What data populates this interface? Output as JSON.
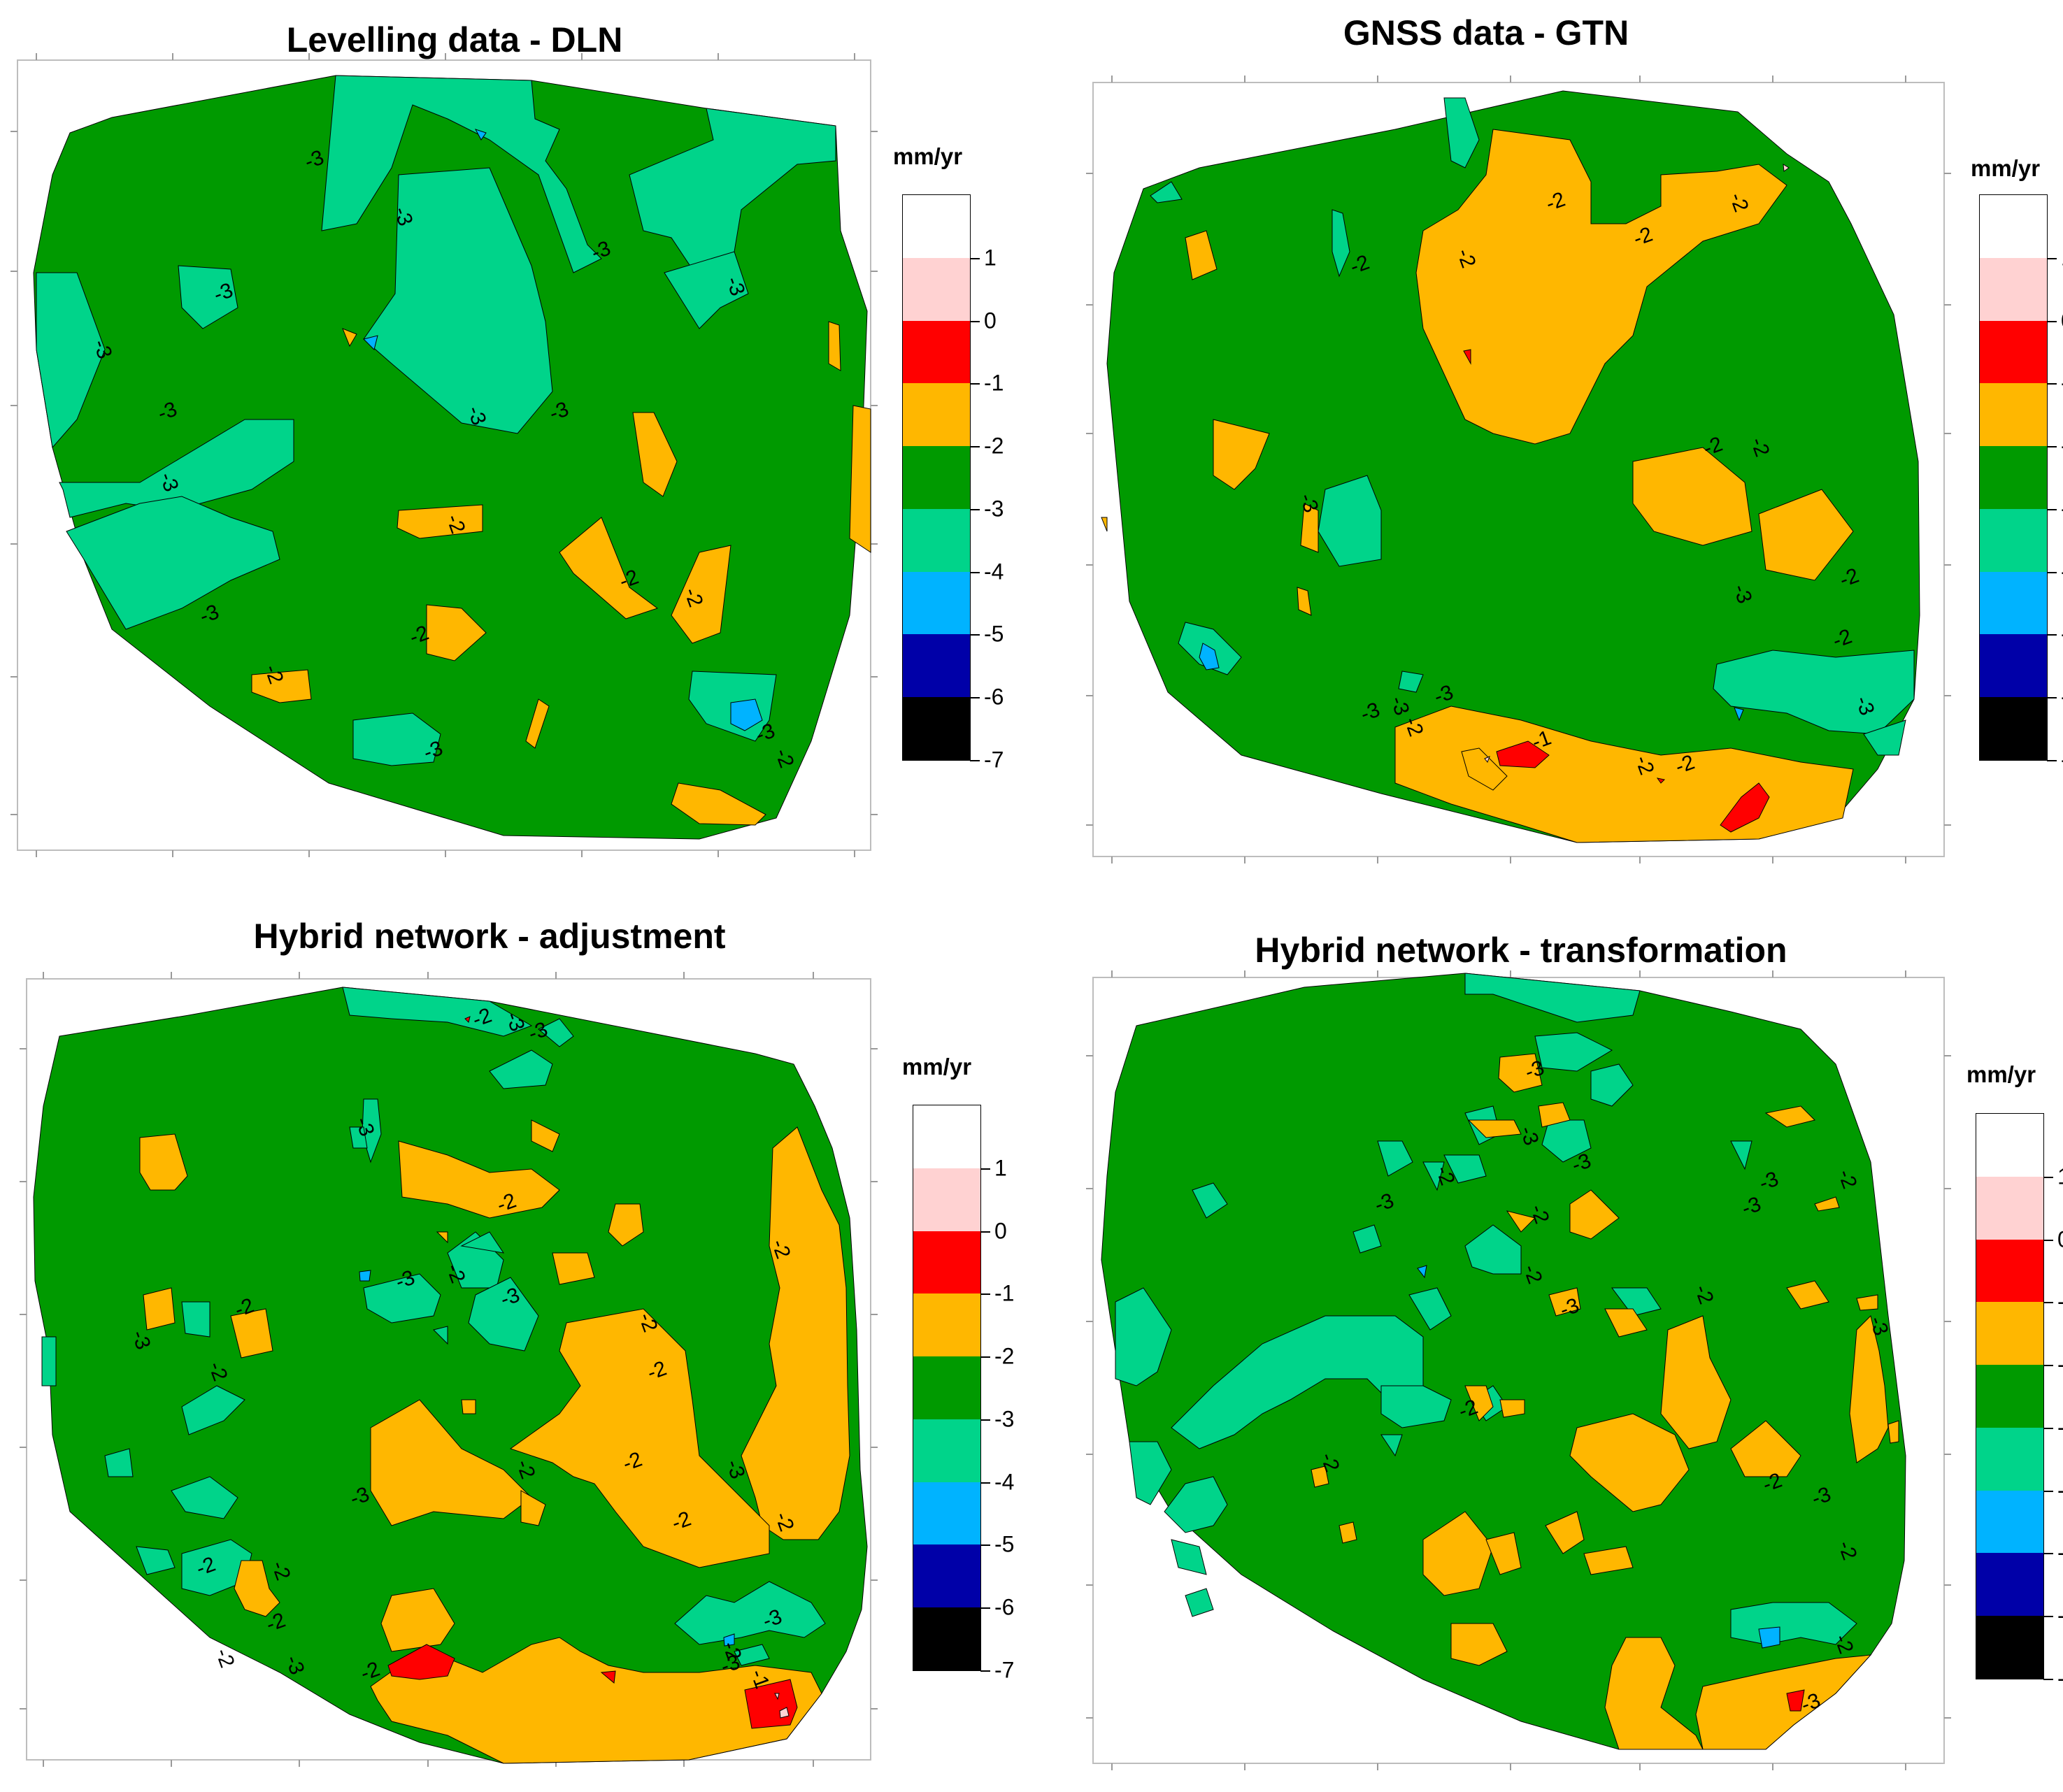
{
  "chart_data": [
    {
      "type": "heatmap",
      "title": "Levelling data - DLN",
      "colorbar_label": "mm/yr",
      "contour_labels": [
        "-3",
        "-3",
        "-3",
        "-3",
        "-3",
        "-3",
        "-3",
        "-3",
        "-3",
        "-3",
        "-3",
        "-2",
        "-2",
        "-2",
        "-2",
        "-2",
        "-3",
        "-2",
        "-3"
      ]
    },
    {
      "type": "heatmap",
      "title": "GNSS data - GTN",
      "colorbar_label": "mm/yr",
      "contour_labels": [
        "-2",
        "-2",
        "-2",
        "-2",
        "-2",
        "-3",
        "-2",
        "-2",
        "-2",
        "-3",
        "-2",
        "-3",
        "-3",
        "-3",
        "-3",
        "-2",
        "-1",
        "-2",
        "-2"
      ]
    },
    {
      "type": "heatmap",
      "title": "Hybrid network - adjustment",
      "colorbar_label": "mm/yr",
      "contour_labels": [
        "-2",
        "-3",
        "-3",
        "-3",
        "-2",
        "-2",
        "-3",
        "-2",
        "-3",
        "-2",
        "-2",
        "-3",
        "-2",
        "-2",
        "-2",
        "-2",
        "-2",
        "-3",
        "-2",
        "-2",
        "-3",
        "-2",
        "-2",
        "-2",
        "-3",
        "-2",
        "-3",
        "-3",
        "-2",
        "-1"
      ]
    },
    {
      "type": "heatmap",
      "title": "Hybrid network - transformation",
      "colorbar_label": "mm/yr",
      "contour_labels": [
        "-3",
        "-3",
        "-3",
        "-2",
        "-3",
        "-2",
        "-3",
        "-2",
        "-3",
        "-2",
        "-3",
        "-2",
        "-2",
        "-3",
        "-3",
        "-2",
        "-2",
        "-2",
        "-3",
        "-2"
      ]
    }
  ],
  "colorbar": {
    "tick_labels": [
      "1",
      "0",
      "-1",
      "-2",
      "-3",
      "-4",
      "-5",
      "-6",
      "-7"
    ],
    "colors": [
      "#ffffff",
      "#ffd2d2",
      "#ff0000",
      "#ffb700",
      "#009a00",
      "#00d48a",
      "#00b3ff",
      "#0000a8",
      "#000000"
    ]
  }
}
